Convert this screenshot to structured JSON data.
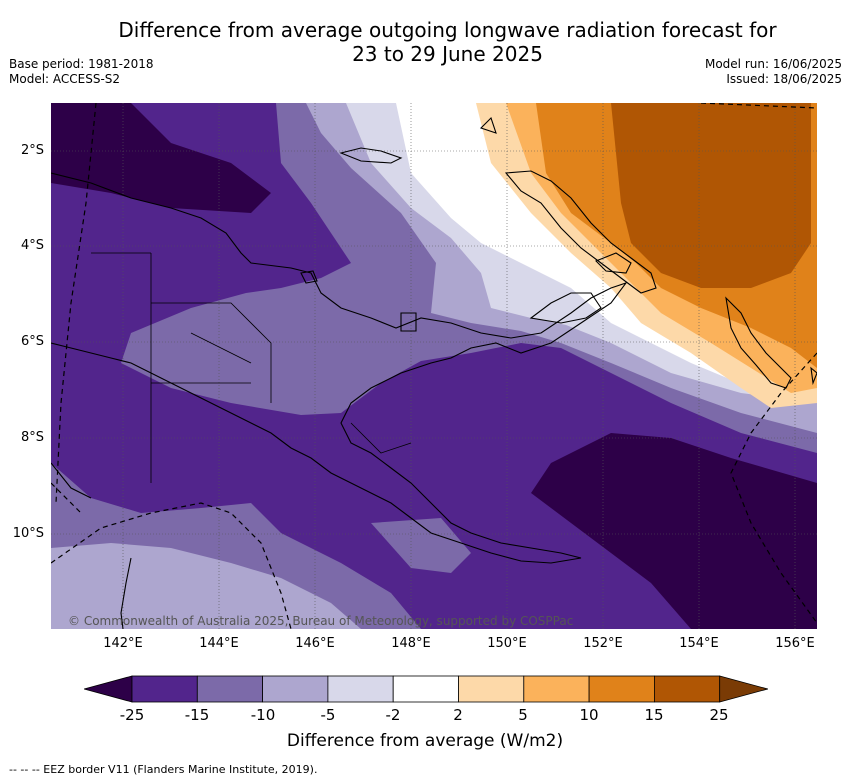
{
  "title_line1": "Difference from average outgoing longwave radiation forecast for",
  "title_line2": "23 to 29 June 2025",
  "base_period": "Base period: 1981-2018",
  "model": "Model: ACCESS-S2",
  "model_run": "Model run: 16/06/2025",
  "issued": "Issued: 18/06/2025",
  "copyright": "© Commonwealth of Australia 2025, Bureau of Meteorology, supported by COSPPac",
  "lat_labels": [
    "2°S",
    "4°S",
    "6°S",
    "8°S",
    "10°S"
  ],
  "lon_labels": [
    "142°E",
    "144°E",
    "146°E",
    "148°E",
    "150°E",
    "152°E",
    "154°E",
    "156°E"
  ],
  "colorbar": {
    "title": "Difference from average (W/m2)",
    "ticks": [
      "-25",
      "-15",
      "-10",
      "-5",
      "-2",
      "2",
      "5",
      "10",
      "15",
      "25"
    ],
    "colors": [
      "#2d0048",
      "#52258c",
      "#7c6aa9",
      "#ada6cf",
      "#d8d8ea",
      "#ffffff",
      "#fdd9a9",
      "#fbb25b",
      "#e0821a",
      "#b05604",
      "#7a3b05"
    ]
  },
  "footnote": "--  --  -- EEZ border V11 (Flanders Marine Institute, 2019)."
}
